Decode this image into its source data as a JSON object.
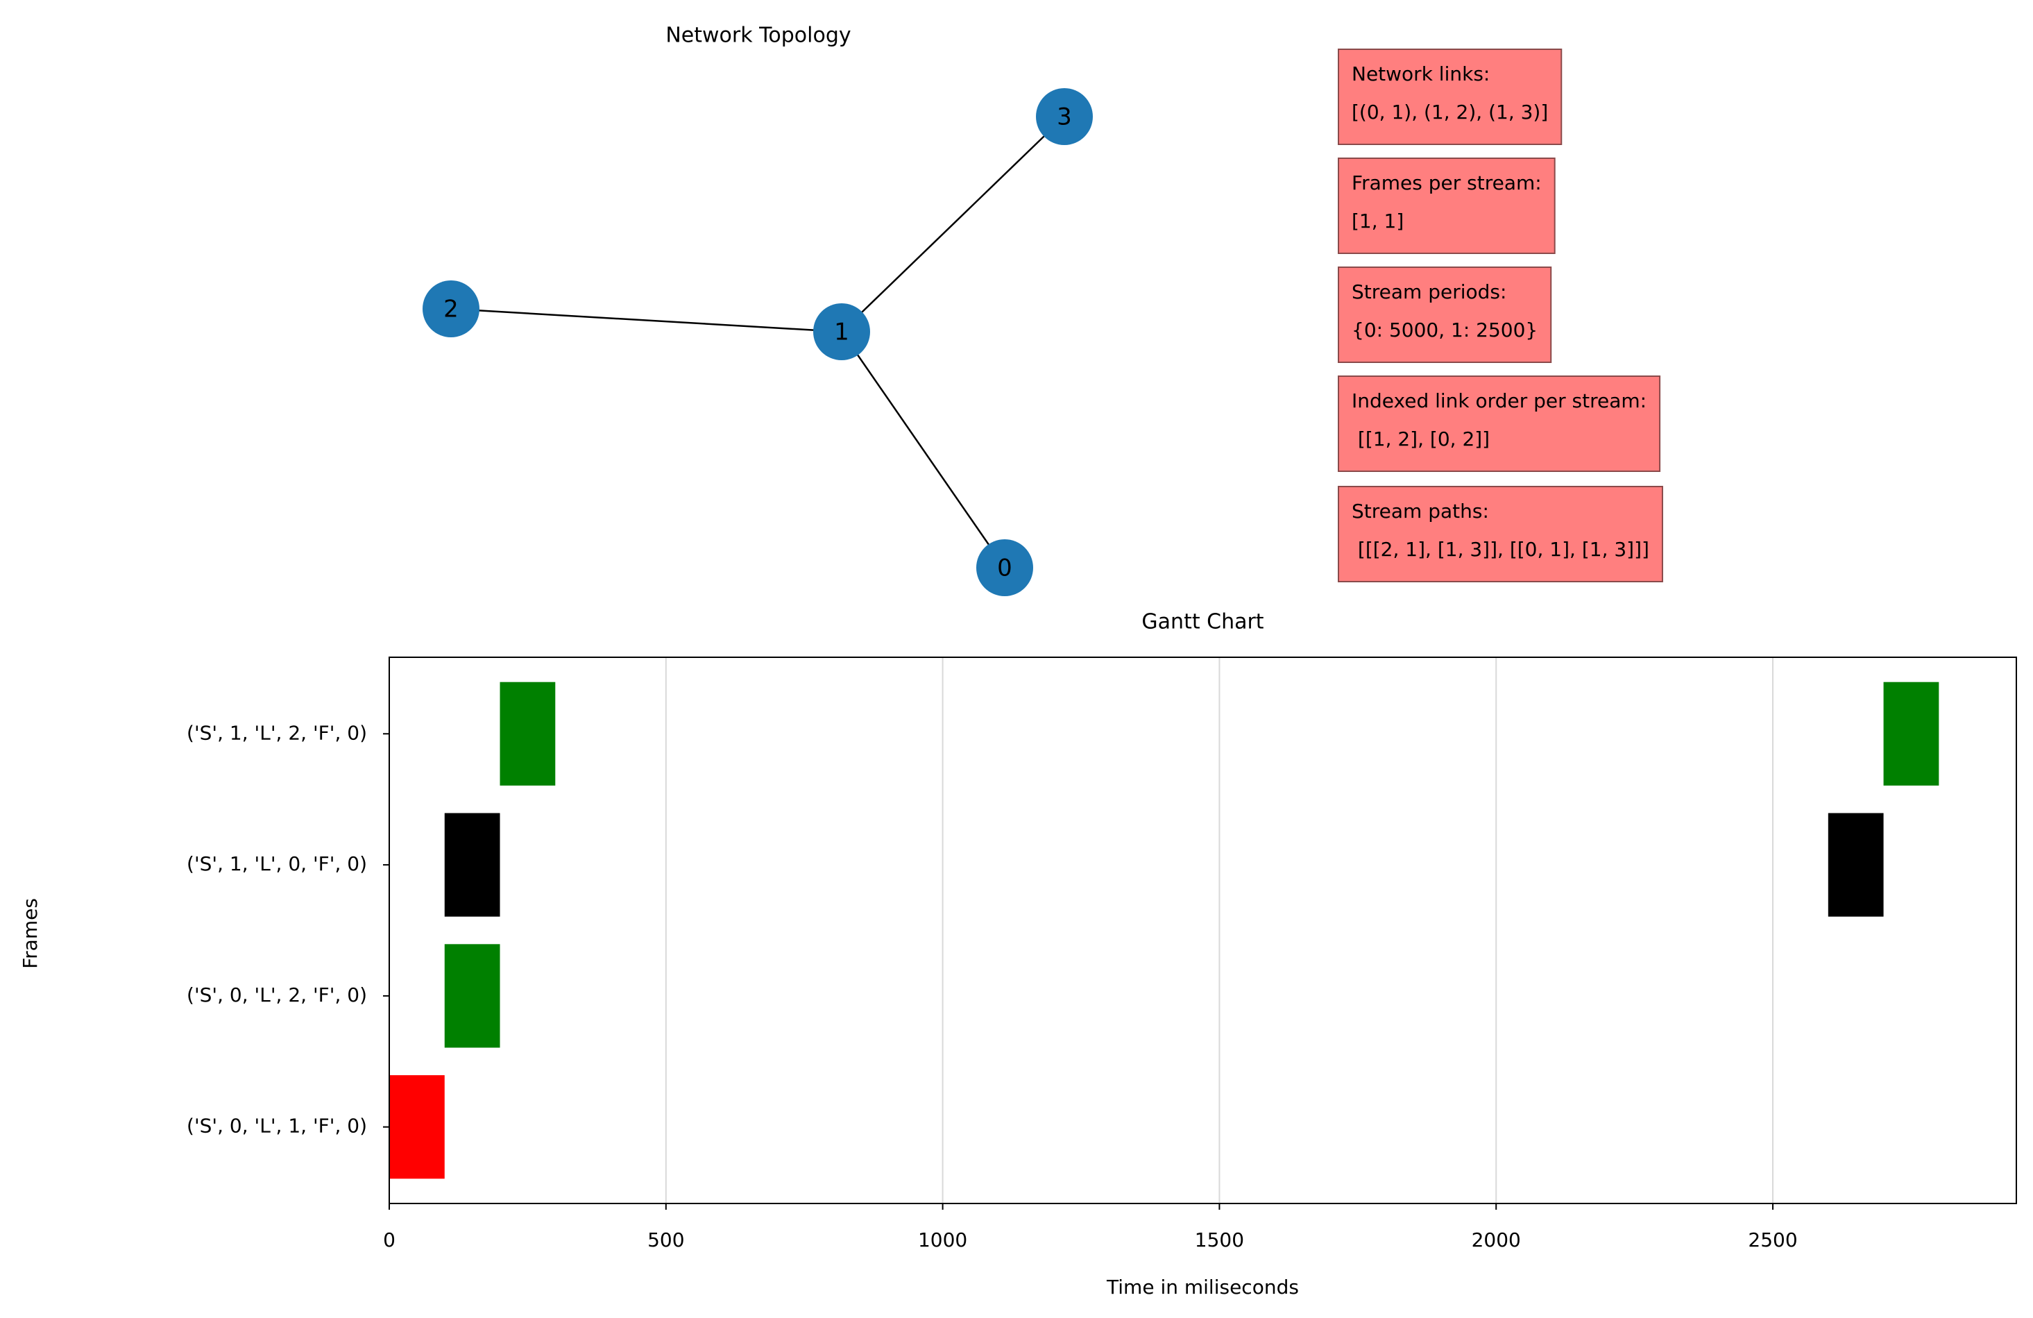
{
  "chart_data": [
    {
      "type": "network",
      "title": "Network Topology",
      "node_color": "#1f78b4",
      "nodes": [
        "0",
        "1",
        "2",
        "3"
      ],
      "edges": [
        [
          0,
          1
        ],
        [
          1,
          2
        ],
        [
          1,
          3
        ]
      ],
      "info_boxes": [
        {
          "lines": [
            "Network links:",
            "[(0, 1), (1, 2), (1, 3)]"
          ]
        },
        {
          "lines": [
            "Frames per stream:",
            "[1, 1]"
          ]
        },
        {
          "lines": [
            "Stream periods:",
            "{0: 5000, 1: 2500}"
          ]
        },
        {
          "lines": [
            "Indexed link order per stream:",
            " [[1, 2], [0, 2]]"
          ]
        },
        {
          "lines": [
            "Stream paths:",
            " [[[2, 1], [1, 3]], [[0, 1], [1, 3]]]"
          ]
        }
      ],
      "box_color": "#ff7f7f"
    },
    {
      "type": "gantt",
      "title": "Gantt Chart",
      "xlabel": "Time in miliseconds",
      "ylabel": "Frames",
      "rows": [
        {
          "label": "('S', 0, 'L', 1, 'F', 0)",
          "bars": [
            {
              "start": 0,
              "duration": 100,
              "color": "red"
            }
          ]
        },
        {
          "label": "('S', 0, 'L', 2, 'F', 0)",
          "bars": [
            {
              "start": 100,
              "duration": 100,
              "color": "green"
            }
          ]
        },
        {
          "label": "('S', 1, 'L', 0, 'F', 0)",
          "bars": [
            {
              "start": 100,
              "duration": 100,
              "color": "black"
            },
            {
              "start": 2600,
              "duration": 100,
              "color": "black"
            }
          ]
        },
        {
          "label": "('S', 1, 'L', 2, 'F', 0)",
          "bars": [
            {
              "start": 200,
              "duration": 100,
              "color": "green"
            },
            {
              "start": 2700,
              "duration": 100,
              "color": "green"
            }
          ]
        }
      ],
      "xlim": [
        0,
        2940
      ],
      "xticks": [
        0,
        500,
        1000,
        1500,
        2000,
        2500
      ],
      "grid": true
    }
  ]
}
